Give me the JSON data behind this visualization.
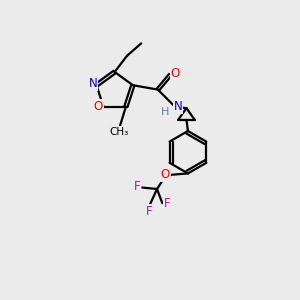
{
  "background_color": "#ebebeb",
  "atom_colors": {
    "C": "#000000",
    "N": "#0000cc",
    "O": "#ff0000",
    "F": "#cc00cc",
    "H": "#5588aa"
  },
  "bond_color": "#000000",
  "line_width": 1.6,
  "figsize": [
    3.0,
    3.0
  ],
  "dpi": 100
}
